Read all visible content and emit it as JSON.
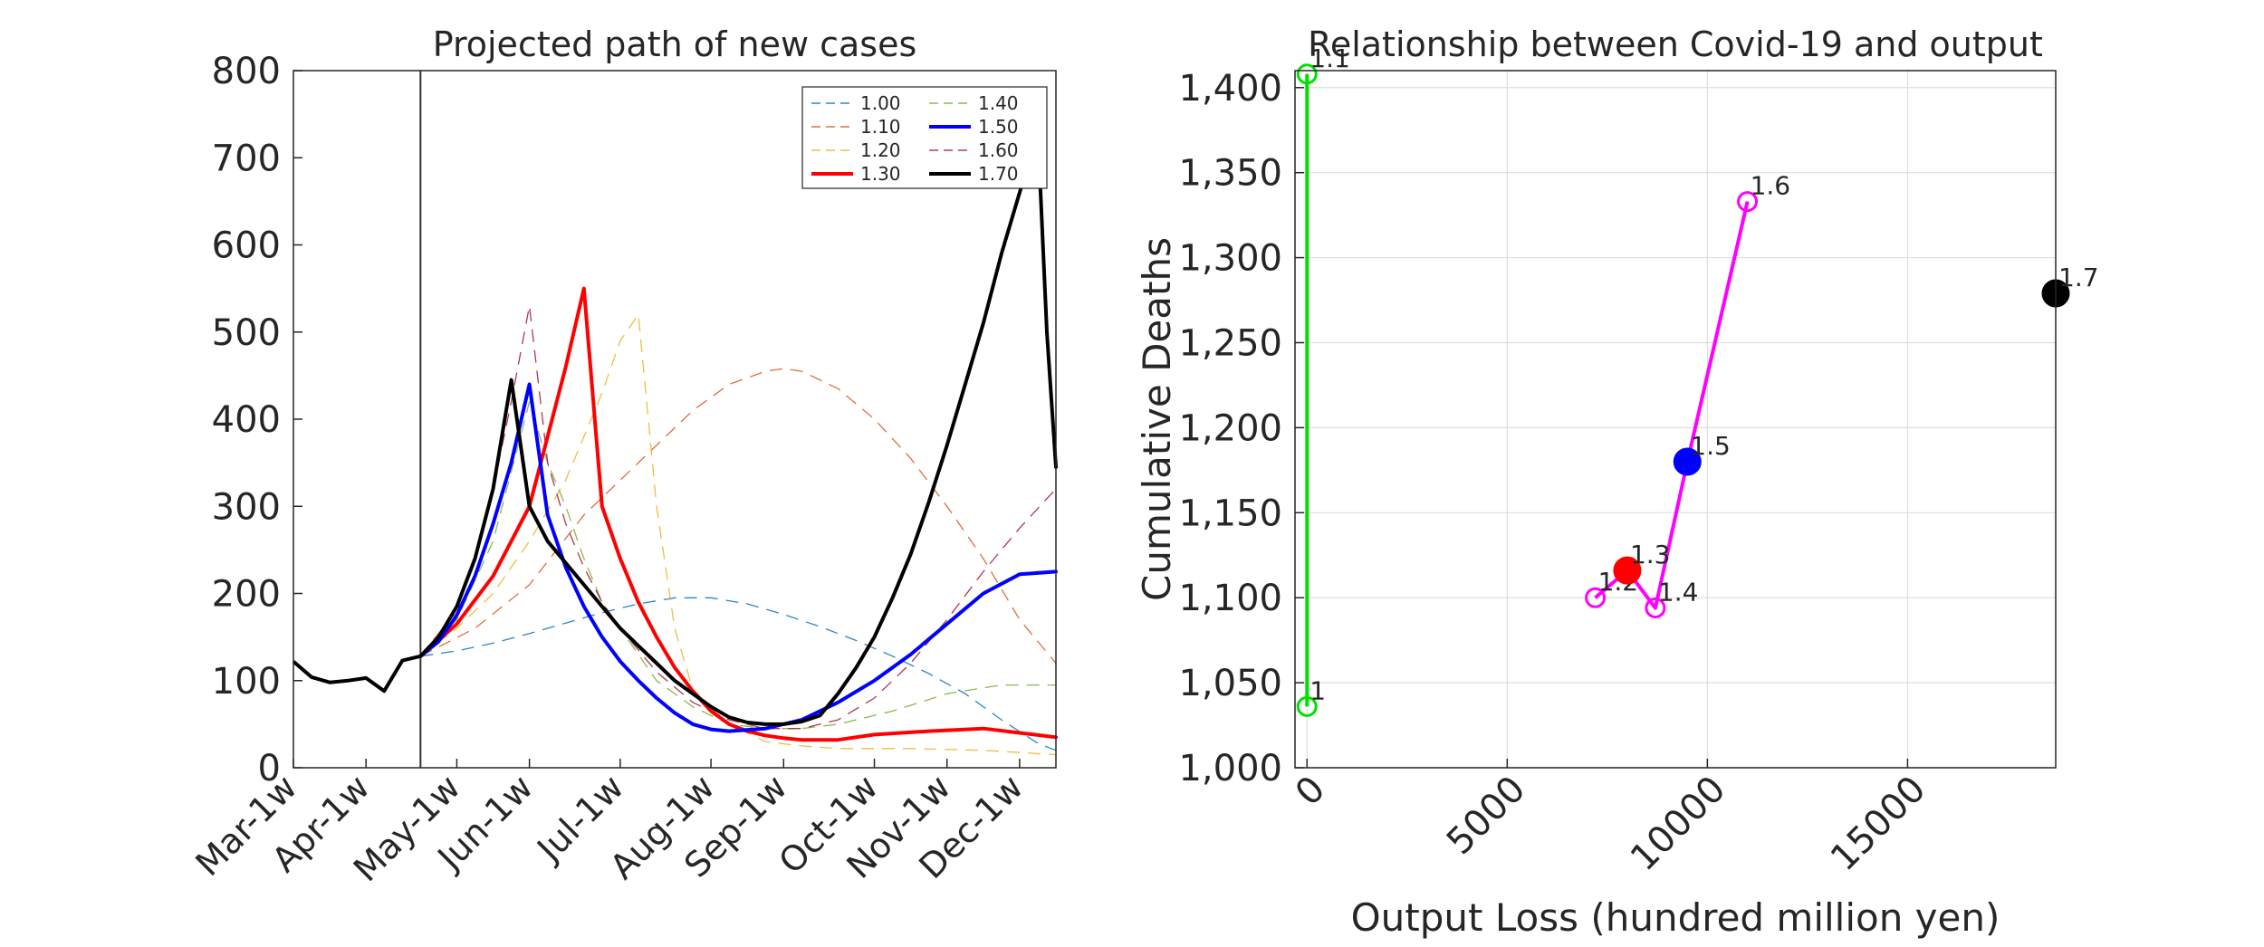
{
  "chart_data": [
    {
      "type": "line",
      "title": "Projected path of new cases",
      "xlabel": "",
      "ylabel": "",
      "ylim": [
        0,
        800
      ],
      "yticks": [
        0,
        100,
        200,
        300,
        400,
        500,
        600,
        700,
        800
      ],
      "xlim": [
        0,
        42
      ],
      "x_unit": "weeks from Mar-1w",
      "categories": [
        "Mar-1w",
        "Apr-1w",
        "May-1w",
        "Jun-1w",
        "Jul-1w",
        "Aug-1w",
        "Sep-1w",
        "Oct-1w",
        "Nov-1w",
        "Dec-1w"
      ],
      "category_positions": [
        0,
        4,
        9,
        13,
        18,
        23,
        27,
        32,
        36,
        40
      ],
      "vline_x": 7,
      "grid": false,
      "legend_position": "top-right",
      "history": {
        "x": [
          0,
          1,
          2,
          3,
          4,
          5,
          6,
          7
        ],
        "y": [
          122,
          104,
          98,
          100,
          103,
          88,
          123,
          128
        ]
      },
      "series": [
        {
          "name": "1.00",
          "color": "#0072bd",
          "dash": true,
          "x": [
            7,
            9,
            11,
            13,
            15,
            17,
            19,
            21,
            23,
            25,
            27,
            29,
            31,
            33,
            35,
            37,
            39,
            41,
            42
          ],
          "y": [
            128,
            134,
            143,
            154,
            166,
            178,
            188,
            195,
            195,
            188,
            176,
            162,
            146,
            128,
            108,
            85,
            55,
            28,
            20
          ]
        },
        {
          "name": "1.10",
          "color": "#d95319",
          "dash": true,
          "x": [
            7,
            10,
            13,
            16,
            19,
            22,
            24,
            26,
            27,
            28,
            30,
            32,
            34,
            36,
            38,
            40,
            42
          ],
          "y": [
            128,
            160,
            210,
            290,
            350,
            410,
            440,
            455,
            458,
            455,
            435,
            400,
            355,
            300,
            240,
            170,
            120
          ]
        },
        {
          "name": "1.20",
          "color": "#edb120",
          "dash": true,
          "x": [
            7,
            9,
            11,
            13,
            15,
            17,
            18,
            19,
            20,
            21,
            22,
            24,
            26,
            28,
            30,
            34,
            38,
            42
          ],
          "y": [
            128,
            160,
            200,
            260,
            330,
            430,
            490,
            520,
            300,
            160,
            90,
            50,
            30,
            25,
            22,
            22,
            20,
            15
          ]
        },
        {
          "name": "1.30",
          "color": "#ff0000",
          "dash": false,
          "width": 4,
          "x": [
            7,
            9,
            11,
            13,
            14,
            15,
            16,
            17,
            18,
            19,
            20,
            21,
            22,
            23,
            24,
            25,
            26,
            27,
            28,
            29,
            30,
            32,
            35,
            38,
            40,
            42
          ],
          "y": [
            128,
            165,
            220,
            300,
            380,
            460,
            550,
            300,
            240,
            190,
            150,
            115,
            88,
            65,
            50,
            42,
            37,
            34,
            32,
            32,
            32,
            38,
            42,
            45,
            40,
            35
          ]
        },
        {
          "name": "1.40",
          "color": "#77ac30",
          "dash": true,
          "x": [
            7,
            9,
            11,
            12,
            13,
            14,
            15,
            16,
            17,
            18,
            19,
            20,
            22,
            24,
            26,
            28,
            30,
            33,
            36,
            39,
            42
          ],
          "y": [
            128,
            170,
            260,
            340,
            420,
            350,
            300,
            240,
            190,
            160,
            130,
            100,
            70,
            50,
            45,
            45,
            50,
            65,
            85,
            95,
            95
          ]
        },
        {
          "name": "1.50",
          "color": "#0000ff",
          "dash": false,
          "width": 4,
          "x": [
            7,
            8,
            9,
            10,
            11,
            12,
            13,
            14,
            15,
            16,
            17,
            18,
            19,
            20,
            21,
            22,
            23,
            24,
            26,
            28,
            30,
            32,
            34,
            36,
            38,
            40,
            42
          ],
          "y": [
            128,
            145,
            175,
            220,
            280,
            350,
            440,
            290,
            230,
            185,
            150,
            122,
            100,
            80,
            63,
            50,
            44,
            42,
            45,
            55,
            75,
            100,
            130,
            165,
            200,
            222,
            225
          ]
        },
        {
          "name": "1.60",
          "color": "#a2142f",
          "dash": true,
          "x": [
            7,
            9,
            10,
            11,
            12,
            13,
            14,
            15,
            16,
            17,
            18,
            20,
            22,
            24,
            26,
            28,
            30,
            32,
            34,
            36,
            38,
            40,
            42
          ],
          "y": [
            128,
            180,
            240,
            320,
            420,
            530,
            350,
            280,
            230,
            190,
            160,
            110,
            75,
            55,
            45,
            45,
            55,
            80,
            120,
            170,
            225,
            275,
            320
          ]
        },
        {
          "name": "1.70",
          "color": "#000000",
          "dash": false,
          "width": 4,
          "x": [
            7,
            8,
            9,
            10,
            11,
            12,
            13,
            14,
            15,
            16,
            17,
            18,
            19,
            20,
            21,
            22,
            23,
            24,
            25,
            26,
            27,
            28,
            29,
            30,
            31,
            32,
            33,
            34,
            35,
            36,
            37,
            38,
            39,
            40,
            41,
            41.5,
            42
          ],
          "y": [
            128,
            150,
            185,
            240,
            320,
            445,
            300,
            260,
            235,
            210,
            185,
            160,
            140,
            120,
            100,
            85,
            70,
            58,
            52,
            50,
            50,
            53,
            60,
            85,
            115,
            150,
            195,
            245,
            305,
            370,
            440,
            510,
            590,
            660,
            730,
            500,
            345
          ]
        }
      ]
    },
    {
      "type": "scatter",
      "title": "Relationship between Covid-19 and output",
      "xlabel": "Output Loss (hundred million yen)",
      "ylabel": "Cumulative Deaths",
      "xlim": [
        -300,
        18700
      ],
      "ylim": [
        1000,
        1410
      ],
      "xticks": [
        0,
        5000,
        10000,
        15000
      ],
      "xtick_labels": [
        "0",
        "5000",
        "10000",
        "15000"
      ],
      "yticks": [
        1000,
        1050,
        1100,
        1150,
        1200,
        1250,
        1300,
        1350,
        1400
      ],
      "ytick_labels": [
        "1,000",
        "1,050",
        "1,100",
        "1,150",
        "1,200",
        "1,250",
        "1,300",
        "1,350",
        "1,400"
      ],
      "grid": true,
      "segments": [
        {
          "color": "#00e000",
          "points": [
            [
              0,
              1036
            ],
            [
              0,
              1408
            ]
          ]
        },
        {
          "color": "#ff00ff",
          "points": [
            [
              7200,
              1100
            ],
            [
              8000,
              1116
            ],
            [
              8700,
              1094
            ],
            [
              9500,
              1180
            ],
            [
              11000,
              1333
            ]
          ]
        }
      ],
      "points": [
        {
          "label": "1",
          "x": 0,
          "y": 1036,
          "color": "#00e000",
          "filled": false
        },
        {
          "label": "1.1",
          "x": 0,
          "y": 1408,
          "color": "#00e000",
          "filled": false
        },
        {
          "label": "1.2",
          "x": 7200,
          "y": 1100,
          "color": "#ff00ff",
          "filled": false
        },
        {
          "label": "1.3",
          "x": 8000,
          "y": 1116,
          "color": "#ff0000",
          "filled": true
        },
        {
          "label": "1.4",
          "x": 8700,
          "y": 1094,
          "color": "#ff00ff",
          "filled": false
        },
        {
          "label": "1.5",
          "x": 9500,
          "y": 1180,
          "color": "#0000ff",
          "filled": true
        },
        {
          "label": "1.6",
          "x": 11000,
          "y": 1333,
          "color": "#ff00ff",
          "filled": false
        },
        {
          "label": "1.7",
          "x": 18700,
          "y": 1279,
          "color": "#000000",
          "filled": true
        }
      ]
    }
  ]
}
